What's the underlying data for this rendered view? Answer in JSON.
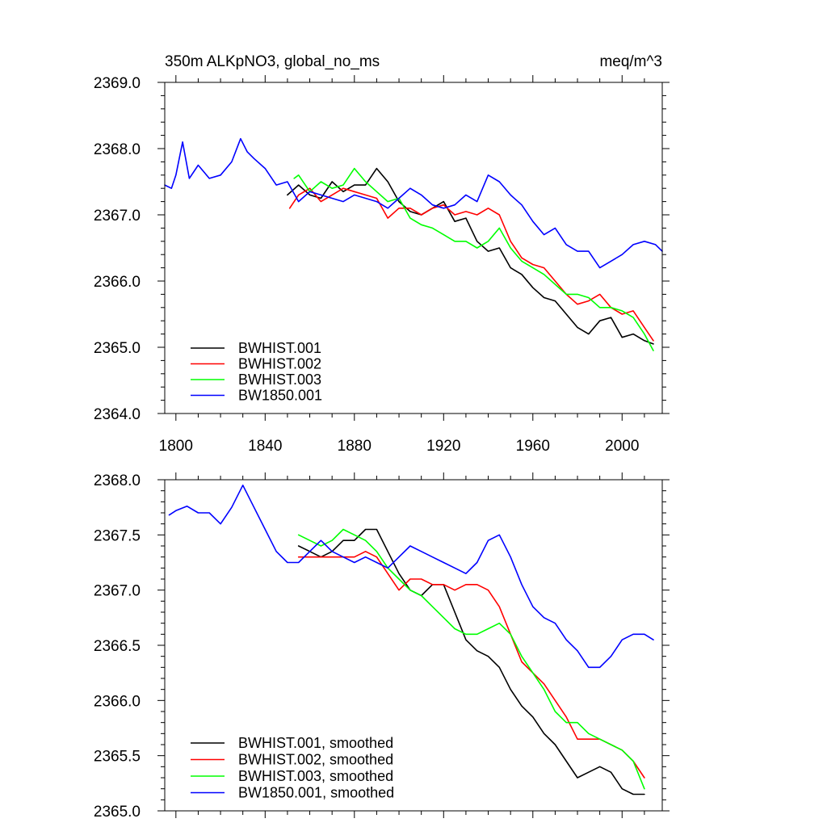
{
  "chart_data": [
    {
      "type": "line",
      "title": "350m ALKpNO3, global_no_ms",
      "units": "meq/m^3",
      "xlabel": "",
      "ylabel": "",
      "xlim": [
        1795,
        2018
      ],
      "ylim": [
        2364.0,
        2369.0
      ],
      "xticks": [
        1800,
        1840,
        1880,
        1920,
        1960,
        2000
      ],
      "xtick_labels": [
        "1800",
        "1840",
        "1880",
        "1920",
        "1960",
        "2000"
      ],
      "yticks": [
        2364.0,
        2365.0,
        2366.0,
        2367.0,
        2368.0,
        2369.0
      ],
      "ytick_labels": [
        "2364.0",
        "2365.0",
        "2366.0",
        "2367.0",
        "2368.0",
        "2369.0"
      ],
      "legend_position": "bottom-left",
      "series": [
        {
          "name": "BWHIST.001",
          "color": "#000000",
          "x": [
            1850,
            1855,
            1860,
            1865,
            1870,
            1875,
            1880,
            1885,
            1890,
            1895,
            1900,
            1905,
            1910,
            1915,
            1920,
            1925,
            1930,
            1935,
            1940,
            1945,
            1950,
            1955,
            1960,
            1965,
            1970,
            1975,
            1980,
            1985,
            1990,
            1995,
            2000,
            2005,
            2010,
            2014
          ],
          "y": [
            2367.3,
            2367.45,
            2367.3,
            2367.25,
            2367.5,
            2367.35,
            2367.45,
            2367.45,
            2367.7,
            2367.5,
            2367.2,
            2367.05,
            2367.0,
            2367.1,
            2367.2,
            2366.9,
            2366.95,
            2366.6,
            2366.45,
            2366.5,
            2366.2,
            2366.1,
            2365.9,
            2365.75,
            2365.7,
            2365.5,
            2365.3,
            2365.2,
            2365.4,
            2365.45,
            2365.15,
            2365.2,
            2365.1,
            2365.05
          ]
        },
        {
          "name": "BWHIST.002",
          "color": "#ff0000",
          "x": [
            1851,
            1855,
            1860,
            1865,
            1870,
            1875,
            1880,
            1885,
            1890,
            1895,
            1900,
            1905,
            1910,
            1915,
            1920,
            1925,
            1930,
            1935,
            1940,
            1945,
            1950,
            1955,
            1960,
            1965,
            1970,
            1975,
            1980,
            1985,
            1990,
            1995,
            2000,
            2005,
            2010,
            2014
          ],
          "y": [
            2367.1,
            2367.3,
            2367.4,
            2367.2,
            2367.3,
            2367.4,
            2367.35,
            2367.3,
            2367.25,
            2366.95,
            2367.1,
            2367.1,
            2367.0,
            2367.1,
            2367.15,
            2367.0,
            2367.05,
            2367.0,
            2367.1,
            2367.0,
            2366.6,
            2366.35,
            2366.25,
            2366.2,
            2366.0,
            2365.8,
            2365.65,
            2365.7,
            2365.8,
            2365.6,
            2365.5,
            2365.55,
            2365.3,
            2365.1
          ]
        },
        {
          "name": "BWHIST.003",
          "color": "#00ff00",
          "x": [
            1853,
            1855,
            1860,
            1865,
            1870,
            1875,
            1880,
            1885,
            1890,
            1895,
            1900,
            1905,
            1910,
            1915,
            1920,
            1925,
            1930,
            1935,
            1940,
            1945,
            1950,
            1955,
            1960,
            1965,
            1970,
            1975,
            1980,
            1985,
            1990,
            1995,
            2000,
            2005,
            2010,
            2014
          ],
          "y": [
            2367.55,
            2367.6,
            2367.35,
            2367.5,
            2367.4,
            2367.45,
            2367.7,
            2367.5,
            2367.35,
            2367.2,
            2367.25,
            2366.95,
            2366.85,
            2366.8,
            2366.7,
            2366.6,
            2366.6,
            2366.5,
            2366.6,
            2366.8,
            2366.5,
            2366.3,
            2366.2,
            2366.1,
            2365.95,
            2365.8,
            2365.8,
            2365.75,
            2365.6,
            2365.6,
            2365.55,
            2365.45,
            2365.2,
            2364.95
          ]
        },
        {
          "name": "BW1850.001",
          "color": "#0000ff",
          "x": [
            1795,
            1798,
            1800,
            1803,
            1806,
            1810,
            1815,
            1820,
            1825,
            1829,
            1832,
            1835,
            1840,
            1845,
            1850,
            1855,
            1860,
            1865,
            1870,
            1875,
            1880,
            1885,
            1890,
            1895,
            1900,
            1905,
            1910,
            1915,
            1920,
            1925,
            1930,
            1935,
            1940,
            1945,
            1950,
            1955,
            1960,
            1965,
            1970,
            1975,
            1980,
            1985,
            1990,
            1995,
            2000,
            2005,
            2010,
            2015,
            2018
          ],
          "y": [
            2367.45,
            2367.4,
            2367.6,
            2368.1,
            2367.55,
            2367.75,
            2367.55,
            2367.6,
            2367.8,
            2368.15,
            2367.95,
            2367.85,
            2367.7,
            2367.45,
            2367.5,
            2367.2,
            2367.35,
            2367.3,
            2367.25,
            2367.2,
            2367.3,
            2367.25,
            2367.2,
            2367.1,
            2367.25,
            2367.4,
            2367.3,
            2367.15,
            2367.1,
            2367.15,
            2367.3,
            2367.2,
            2367.6,
            2367.5,
            2367.3,
            2367.15,
            2366.9,
            2366.7,
            2366.8,
            2366.55,
            2366.45,
            2366.45,
            2366.2,
            2366.3,
            2366.4,
            2366.55,
            2366.6,
            2366.55,
            2366.45
          ]
        }
      ]
    },
    {
      "type": "line",
      "title": "",
      "xlabel": "",
      "ylabel": "",
      "xlim": [
        1795,
        2018
      ],
      "ylim": [
        2365.0,
        2368.0
      ],
      "xticks": [
        1800,
        1840,
        1880,
        1920,
        1960,
        2000
      ],
      "yticks": [
        2365.0,
        2365.5,
        2366.0,
        2366.5,
        2367.0,
        2367.5,
        2368.0
      ],
      "ytick_labels": [
        "2365.0",
        "2365.5",
        "2366.0",
        "2366.5",
        "2367.0",
        "2367.5",
        "2368.0"
      ],
      "legend_position": "bottom-left",
      "series": [
        {
          "name": "BWHIST.001, smoothed",
          "color": "#000000",
          "x": [
            1855,
            1860,
            1865,
            1870,
            1875,
            1880,
            1885,
            1890,
            1895,
            1900,
            1905,
            1910,
            1915,
            1920,
            1925,
            1930,
            1935,
            1940,
            1945,
            1950,
            1955,
            1960,
            1965,
            1970,
            1975,
            1980,
            1985,
            1990,
            1995,
            2000,
            2005,
            2010
          ],
          "y": [
            2367.4,
            2367.35,
            2367.3,
            2367.35,
            2367.45,
            2367.45,
            2367.55,
            2367.55,
            2367.35,
            2367.15,
            2367.0,
            2366.95,
            2367.05,
            2367.05,
            2366.8,
            2366.55,
            2366.45,
            2366.4,
            2366.3,
            2366.1,
            2365.95,
            2365.85,
            2365.7,
            2365.6,
            2365.45,
            2365.3,
            2365.35,
            2365.4,
            2365.35,
            2365.2,
            2365.15,
            2365.15
          ]
        },
        {
          "name": "BWHIST.002, smoothed",
          "color": "#ff0000",
          "x": [
            1855,
            1860,
            1865,
            1870,
            1875,
            1880,
            1885,
            1890,
            1895,
            1900,
            1905,
            1910,
            1915,
            1920,
            1925,
            1930,
            1935,
            1940,
            1945,
            1950,
            1955,
            1960,
            1965,
            1970,
            1975,
            1980,
            1985,
            1990,
            1995,
            2000,
            2005,
            2010
          ],
          "y": [
            2367.3,
            2367.3,
            2367.3,
            2367.3,
            2367.3,
            2367.3,
            2367.35,
            2367.3,
            2367.15,
            2367.0,
            2367.1,
            2367.1,
            2367.05,
            2367.05,
            2367.0,
            2367.05,
            2367.05,
            2367.0,
            2366.85,
            2366.6,
            2366.35,
            2366.25,
            2366.15,
            2366.0,
            2365.85,
            2365.65,
            2365.65,
            2365.65,
            2365.6,
            2365.55,
            2365.45,
            2365.3
          ]
        },
        {
          "name": "BWHIST.003, smoothed",
          "color": "#00ff00",
          "x": [
            1855,
            1860,
            1865,
            1870,
            1875,
            1880,
            1885,
            1890,
            1895,
            1900,
            1905,
            1910,
            1915,
            1920,
            1925,
            1930,
            1935,
            1940,
            1945,
            1950,
            1955,
            1960,
            1965,
            1970,
            1975,
            1980,
            1985,
            1990,
            1995,
            2000,
            2005,
            2010
          ],
          "y": [
            2367.5,
            2367.45,
            2367.4,
            2367.45,
            2367.55,
            2367.5,
            2367.45,
            2367.35,
            2367.2,
            2367.1,
            2367.0,
            2366.95,
            2366.85,
            2366.75,
            2366.65,
            2366.6,
            2366.6,
            2366.65,
            2366.7,
            2366.6,
            2366.4,
            2366.25,
            2366.1,
            2365.9,
            2365.8,
            2365.8,
            2365.7,
            2365.65,
            2365.6,
            2365.55,
            2365.45,
            2365.2
          ]
        },
        {
          "name": "BW1850.001, smoothed",
          "color": "#0000ff",
          "x": [
            1797,
            1800,
            1805,
            1810,
            1815,
            1820,
            1825,
            1830,
            1835,
            1840,
            1845,
            1850,
            1855,
            1860,
            1865,
            1870,
            1875,
            1880,
            1885,
            1890,
            1895,
            1900,
            1905,
            1910,
            1915,
            1920,
            1925,
            1930,
            1935,
            1940,
            1945,
            1950,
            1955,
            1960,
            1965,
            1970,
            1975,
            1980,
            1985,
            1990,
            1995,
            2000,
            2005,
            2010,
            2014
          ],
          "y": [
            2367.68,
            2367.72,
            2367.76,
            2367.7,
            2367.7,
            2367.6,
            2367.75,
            2367.95,
            2367.75,
            2367.55,
            2367.35,
            2367.25,
            2367.25,
            2367.35,
            2367.45,
            2367.35,
            2367.3,
            2367.25,
            2367.3,
            2367.25,
            2367.2,
            2367.3,
            2367.4,
            2367.35,
            2367.3,
            2367.25,
            2367.2,
            2367.15,
            2367.25,
            2367.45,
            2367.5,
            2367.3,
            2367.05,
            2366.85,
            2366.75,
            2366.7,
            2366.55,
            2366.45,
            2366.3,
            2366.3,
            2366.4,
            2366.55,
            2366.6,
            2366.6,
            2366.55
          ]
        }
      ]
    }
  ]
}
